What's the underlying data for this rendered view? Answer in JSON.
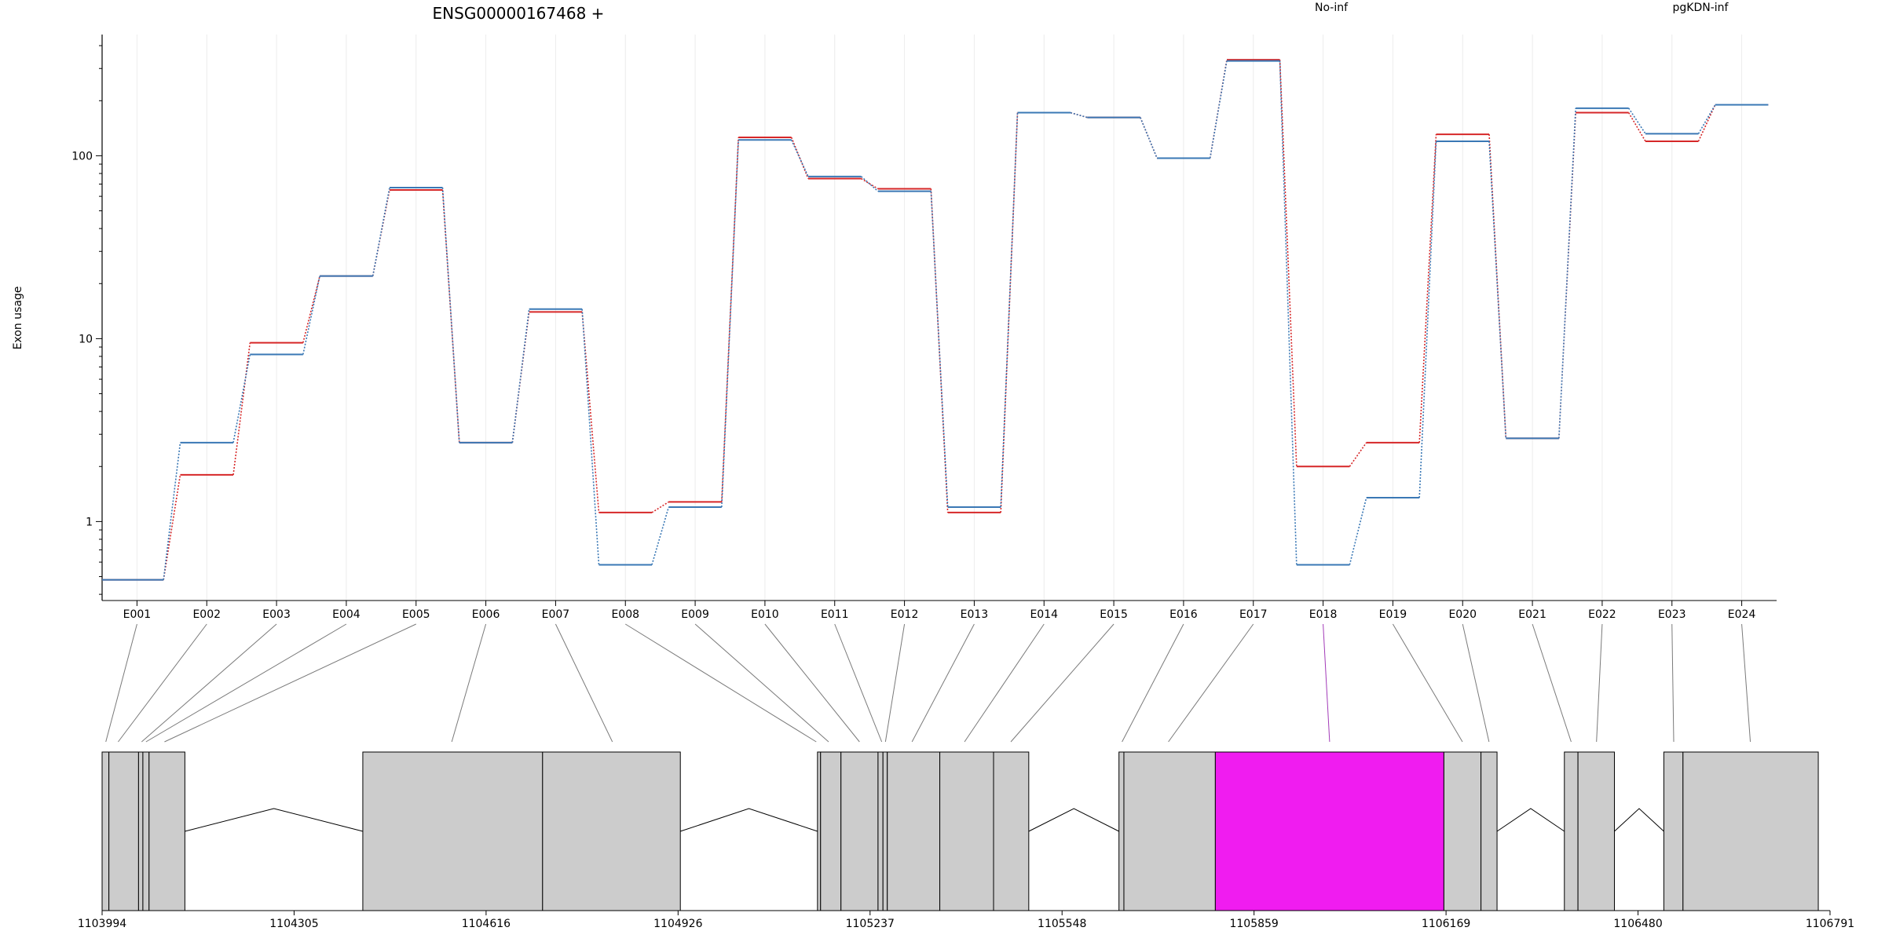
{
  "chart_data": {
    "type": "line",
    "title": "ENSG00000167468 +",
    "ylabel": "Exon usage",
    "y_scale": "log",
    "yticks": [
      1,
      10,
      100
    ],
    "ytick_labels": [
      "1",
      "10",
      "100"
    ],
    "legend": [
      "No-inf",
      "pgKDN-inf"
    ],
    "legend_placement": "top",
    "colors": {
      "No-inf": "#d62728",
      "pgKDN-inf": "#3a78b5",
      "highlight": "#f01cf0",
      "exon_box": "#cccccc"
    },
    "categories": [
      "E001",
      "E002",
      "E003",
      "E004",
      "E005",
      "E006",
      "E007",
      "E008",
      "E009",
      "E010",
      "E011",
      "E012",
      "E013",
      "E014",
      "E015",
      "E016",
      "E017",
      "E018",
      "E019",
      "E020",
      "E021",
      "E022",
      "E023",
      "E024"
    ],
    "series": [
      {
        "name": "No-inf",
        "values": [
          0.48,
          1.8,
          9.5,
          22,
          65,
          2.7,
          14,
          1.12,
          1.28,
          126,
          75,
          66,
          1.12,
          172,
          162,
          97,
          335,
          2.0,
          2.7,
          131,
          2.85,
          172,
          120,
          190
        ]
      },
      {
        "name": "pgKDN-inf",
        "values": [
          0.48,
          2.7,
          8.2,
          22,
          67,
          2.7,
          14.5,
          0.58,
          1.2,
          122,
          77,
          64,
          1.2,
          172,
          162,
          97,
          330,
          0.58,
          1.35,
          120,
          2.85,
          182,
          132,
          190
        ]
      }
    ],
    "highlighted_exon": "E018",
    "genomic_axis": {
      "ticks": [
        "1103994",
        "1104305",
        "1104616",
        "1104926",
        "1105237",
        "1105548",
        "1105859",
        "1106169",
        "1106480",
        "1106791"
      ],
      "start": 1103994,
      "end": 1106791
    },
    "exon_segments": [
      [
        1103994,
        1104005
      ],
      [
        1104005,
        1104053
      ],
      [
        1104053,
        1104060
      ],
      [
        1104060,
        1104070
      ],
      [
        1104070,
        1104128
      ],
      [
        1104416,
        1104707
      ],
      [
        1104707,
        1104930
      ],
      [
        1105152,
        1105157
      ],
      [
        1105157,
        1105190
      ],
      [
        1105190,
        1105250
      ],
      [
        1105250,
        1105258
      ],
      [
        1105258,
        1105265
      ],
      [
        1105265,
        1105350
      ],
      [
        1105350,
        1105437
      ],
      [
        1105437,
        1105494
      ],
      [
        1105640,
        1105648
      ],
      [
        1105648,
        1105796
      ],
      [
        1105796,
        1106166
      ],
      [
        1106166,
        1106226
      ],
      [
        1106226,
        1106252
      ],
      [
        1106361,
        1106383
      ],
      [
        1106383,
        1106442
      ],
      [
        1106522,
        1106553
      ],
      [
        1106553,
        1106772
      ]
    ],
    "exon_connections": [
      1104000,
      1104020,
      1104058,
      1104065,
      1104095,
      1104560,
      1104820,
      1105150,
      1105170,
      1105220,
      1105256,
      1105262,
      1105305,
      1105390,
      1105465,
      1105645,
      1105720,
      1105981,
      1106196,
      1106239,
      1106372,
      1106413,
      1106538,
      1106662
    ],
    "introns": [
      [
        1104128,
        1104416
      ],
      [
        1104930,
        1105152
      ],
      [
        1105494,
        1105640
      ],
      [
        1106252,
        1106361
      ],
      [
        1106442,
        1106522
      ]
    ]
  }
}
